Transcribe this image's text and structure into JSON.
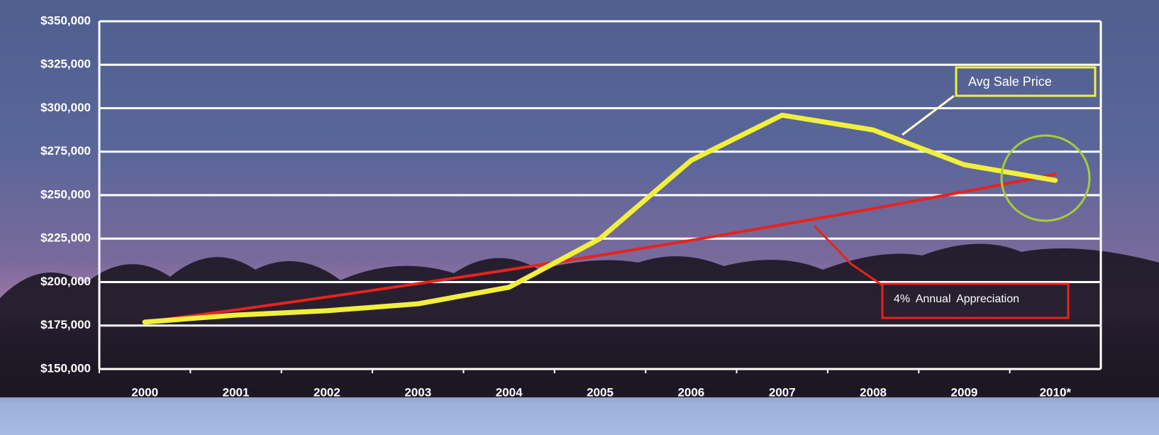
{
  "chart_data": {
    "type": "line",
    "categories": [
      "2000",
      "2001",
      "2002",
      "2003",
      "2004",
      "2005",
      "2006",
      "2007",
      "2008",
      "2009",
      "2010*"
    ],
    "series": [
      {
        "name": "Avg Sale Price",
        "color": "#f2ef3c",
        "values": [
          177000,
          181000,
          183500,
          187500,
          197000,
          225000,
          270000,
          296000,
          287500,
          267500,
          258500
        ]
      },
      {
        "name": "4% Annual Appreciation",
        "color": "#e8231c",
        "values": [
          177000,
          184000,
          191400,
          199100,
          207100,
          215400,
          224000,
          233000,
          242300,
          252000,
          262000
        ]
      }
    ],
    "ylim": [
      150000,
      350000
    ],
    "yticks": [
      {
        "value": 150000,
        "label": "$150,000"
      },
      {
        "value": 175000,
        "label": "$175,000"
      },
      {
        "value": 200000,
        "label": "$200,000"
      },
      {
        "value": 225000,
        "label": "$225,000"
      },
      {
        "value": 250000,
        "label": "$250,000"
      },
      {
        "value": 275000,
        "label": "$275,000"
      },
      {
        "value": 300000,
        "label": "$300,000"
      },
      {
        "value": 325000,
        "label": "$325,000"
      },
      {
        "value": 350000,
        "label": "$350,000"
      }
    ],
    "grid": true
  }
}
